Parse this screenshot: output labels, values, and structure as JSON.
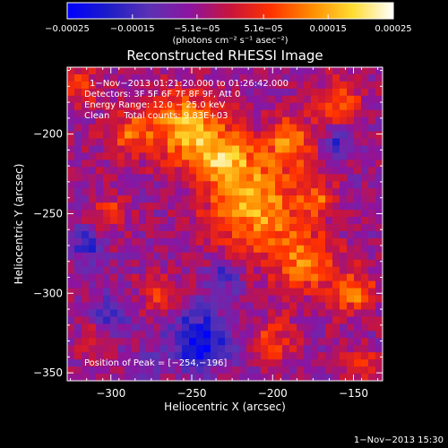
{
  "chart_data": {
    "type": "heatmap",
    "title": "Reconstructed RHESSI Image",
    "xlabel": "Heliocentric X (arcsec)",
    "ylabel": "Heliocentric Y (arcsec)",
    "xlim": [
      -327,
      -132
    ],
    "ylim": [
      -355,
      -158
    ],
    "xticks": [
      -300,
      -250,
      -200,
      -150
    ],
    "xtick_labels": [
      "−300",
      "−250",
      "−200",
      "−150"
    ],
    "yticks": [
      -200,
      -250,
      -300,
      -350
    ],
    "ytick_labels": [
      "−200",
      "−250",
      "−300",
      "−350"
    ],
    "colorbar": {
      "range": [
        -0.00025,
        0.00025
      ],
      "ticks": [
        -0.00025,
        -0.00015,
        -5.1e-05,
        5.1e-05,
        0.00015,
        0.00025
      ],
      "tick_labels": [
        "−0.00025",
        "−0.00015",
        "−5.1e−05",
        "5.1e−05",
        "0.00015",
        "0.00025"
      ],
      "unit_label": "(photons cm⁻² s⁻¹ asec⁻²)",
      "colors": [
        "#0000ff",
        "#1c1cc8",
        "#5a32b4",
        "#8c14a0",
        "#c8143c",
        "#ff3200",
        "#ff8c00",
        "#ffdc32",
        "#ffffff"
      ]
    },
    "annotations": [
      "1−Nov−2013 01:21:20.000 to 01:26:42.000",
      "Detectors: 3F 5F 6F 7F 8F 9F, Att 0",
      "Energy Range: 12.0 − 25.0 keV",
      "Clean     Total counts: 9.83E+03"
    ],
    "peak_label": "Position of Peak = [−254,−196]",
    "peak": [
      -254,
      -196
    ],
    "timestamp": "1−Nov−2013 15:30",
    "grid": false,
    "legend": "colorbar-top"
  }
}
